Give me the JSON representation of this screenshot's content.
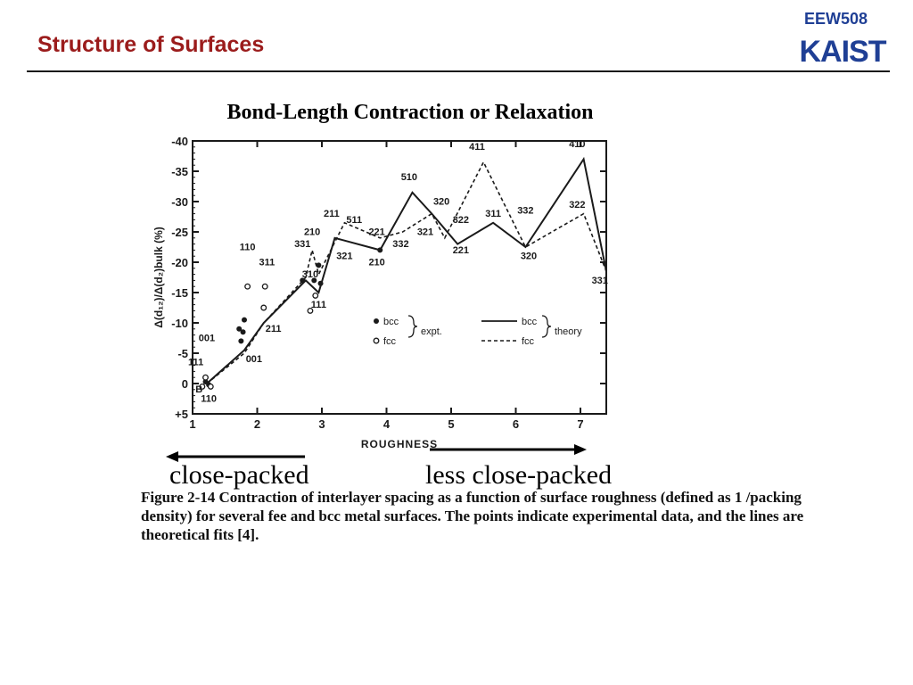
{
  "header": {
    "title": "Structure of Surfaces",
    "course_code": "EEW508",
    "logo_text": "KAIST"
  },
  "colors": {
    "title": "#9b1c1c",
    "brand_blue": "#1f3f95",
    "ink": "#1a1a1a"
  },
  "chart_title": "Bond-Length Contraction or Relaxation",
  "chart_data": {
    "type": "line",
    "xlabel": "ROUGHNESS",
    "ylabel": "Δ(d₁₂)/Δ(d₂)bulk (%)",
    "xlim": [
      1,
      7.4
    ],
    "ylim": [
      5,
      -40
    ],
    "x_ticks": [
      "1",
      "2",
      "3",
      "4",
      "5",
      "6",
      "7"
    ],
    "y_ticks": [
      "-40",
      "-35",
      "-30",
      "-25",
      "-20",
      "-15",
      "-10",
      "-5",
      "0",
      "+5"
    ],
    "y_tick_values": [
      -40,
      -35,
      -30,
      -25,
      -20,
      -15,
      -10,
      -5,
      0,
      5
    ],
    "series": [
      {
        "name": "bcc",
        "style": "solid",
        "points": [
          [
            1.22,
            0
          ],
          [
            1.8,
            -5.5
          ],
          [
            2.1,
            -10
          ],
          [
            2.75,
            -17
          ],
          [
            2.95,
            -15
          ],
          [
            3.2,
            -24
          ],
          [
            3.9,
            -22
          ],
          [
            4.4,
            -31.5
          ],
          [
            4.7,
            -28
          ],
          [
            5.1,
            -23
          ],
          [
            5.65,
            -26.5
          ],
          [
            6.15,
            -22.5
          ],
          [
            7.05,
            -37
          ],
          [
            7.4,
            -18.5
          ]
        ]
      },
      {
        "name": "fcc",
        "style": "dashed",
        "points": [
          [
            1.22,
            0
          ],
          [
            1.8,
            -5
          ],
          [
            2.1,
            -10
          ],
          [
            2.75,
            -17.5
          ],
          [
            2.85,
            -22
          ],
          [
            2.95,
            -18
          ],
          [
            3.35,
            -26.5
          ],
          [
            3.9,
            -24
          ],
          [
            4.25,
            -25
          ],
          [
            4.7,
            -28
          ],
          [
            4.9,
            -24
          ],
          [
            5.5,
            -36.5
          ],
          [
            6.15,
            -22.5
          ],
          [
            7.05,
            -28
          ],
          [
            7.4,
            -18.5
          ]
        ]
      }
    ],
    "experimental": {
      "bcc": [
        [
          1.2,
          -0.3
        ],
        [
          1.25,
          0.2
        ],
        [
          1.75,
          -7
        ],
        [
          1.78,
          -8.5
        ],
        [
          1.8,
          -10.5
        ],
        [
          1.72,
          -9
        ],
        [
          2.7,
          -17
        ],
        [
          2.88,
          -17
        ],
        [
          2.95,
          -19.5
        ],
        [
          2.98,
          -16.5
        ],
        [
          3.9,
          -22
        ]
      ],
      "fcc": [
        [
          1.15,
          0.5
        ],
        [
          1.2,
          -1
        ],
        [
          1.28,
          0.5
        ],
        [
          1.85,
          -16
        ],
        [
          2.1,
          -12.5
        ],
        [
          2.12,
          -16
        ],
        [
          2.82,
          -12
        ],
        [
          2.9,
          -14.5
        ]
      ]
    },
    "annotations": [
      {
        "text": "001",
        "x": 1.22,
        "y": -7
      },
      {
        "text": "111",
        "x": 1.05,
        "y": -3
      },
      {
        "text": "B",
        "x": 1.1,
        "y": 1.5
      },
      {
        "text": "110",
        "x": 1.25,
        "y": 3
      },
      {
        "text": "001",
        "x": 1.95,
        "y": -3.5
      },
      {
        "text": "110",
        "x": 1.85,
        "y": -22
      },
      {
        "text": "311",
        "x": 2.15,
        "y": -19.5
      },
      {
        "text": "211",
        "x": 2.25,
        "y": -8.5
      },
      {
        "text": "331",
        "x": 2.7,
        "y": -22.5
      },
      {
        "text": "210",
        "x": 2.85,
        "y": -24.5
      },
      {
        "text": "310",
        "x": 2.82,
        "y": -17.5
      },
      {
        "text": "111",
        "x": 2.95,
        "y": -12.5
      },
      {
        "text": "211",
        "x": 3.15,
        "y": -27.5
      },
      {
        "text": "511",
        "x": 3.5,
        "y": -26.5
      },
      {
        "text": "321",
        "x": 3.35,
        "y": -20.5
      },
      {
        "text": "221",
        "x": 3.85,
        "y": -24.5
      },
      {
        "text": "332",
        "x": 4.22,
        "y": -22.5
      },
      {
        "text": "210",
        "x": 3.85,
        "y": -19.5
      },
      {
        "text": "510",
        "x": 4.35,
        "y": -33.5
      },
      {
        "text": "320",
        "x": 4.85,
        "y": -29.5
      },
      {
        "text": "321",
        "x": 4.6,
        "y": -24.5
      },
      {
        "text": "322",
        "x": 5.15,
        "y": -26.5
      },
      {
        "text": "221",
        "x": 5.15,
        "y": -21.5
      },
      {
        "text": "411",
        "x": 5.4,
        "y": -38.5
      },
      {
        "text": "311",
        "x": 5.65,
        "y": -27.5
      },
      {
        "text": "332",
        "x": 6.15,
        "y": -28
      },
      {
        "text": "320",
        "x": 6.2,
        "y": -20.5
      },
      {
        "text": "410",
        "x": 6.95,
        "y": -39
      },
      {
        "text": "322",
        "x": 6.95,
        "y": -29
      },
      {
        "text": "331",
        "x": 7.3,
        "y": -16.5
      }
    ],
    "legend": {
      "placement": "lower-right",
      "expt_bcc": "bcc",
      "expt_fcc": "fcc",
      "expt_label": "expt.",
      "theory_bcc": "bcc",
      "theory_fcc": "fcc",
      "theory_label": "theory"
    }
  },
  "arrows": {
    "left_label": "close-packed",
    "right_label": "less close-packed"
  },
  "caption": "Figure 2-14 Contraction of interlayer spacing as a function of surface roughness (defined as 1 /packing density) for several fee and bcc metal surfaces. The points indicate experimental data, and the lines are theoretical fits [4]."
}
